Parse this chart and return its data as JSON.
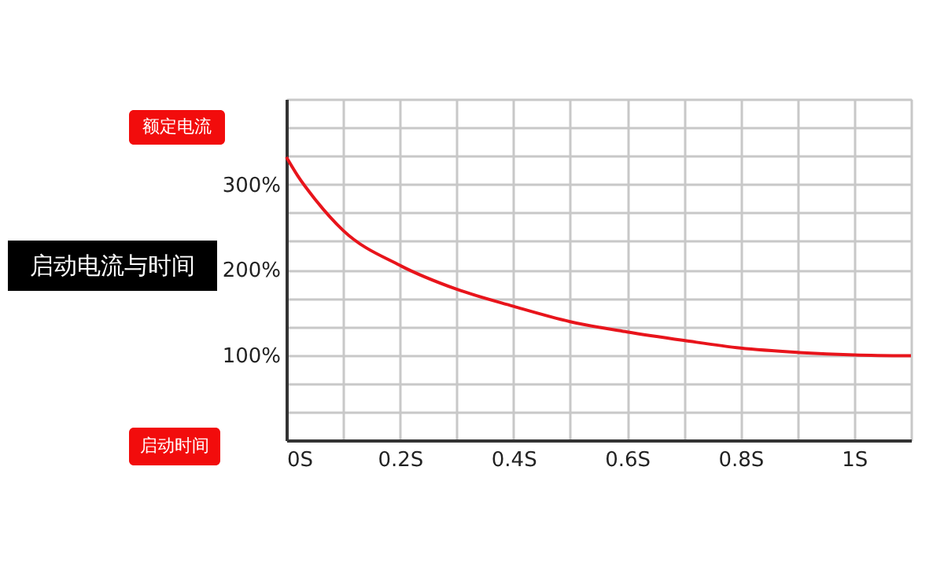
{
  "chart_data": {
    "type": "line",
    "title": "启动电流与时间",
    "xlabel": "启动时间",
    "ylabel": "额定电流",
    "x": [
      0,
      0.02,
      0.05,
      0.1,
      0.2,
      0.3,
      0.4,
      0.5,
      0.6,
      0.7,
      0.8,
      0.9,
      1.0,
      1.1
    ],
    "series": [
      {
        "color": "#e8141b",
        "values": [
          332,
          310,
          283,
          246,
          205,
          177,
          157,
          139,
          127,
          117,
          108,
          103,
          100,
          99
        ]
      }
    ],
    "xlim": [
      0,
      1.1
    ],
    "xticks": [
      {
        "value": 0,
        "label": "0S"
      },
      {
        "value": 0.1,
        "label": null
      },
      {
        "value": 0.2,
        "label": "0.2S"
      },
      {
        "value": 0.3,
        "label": null
      },
      {
        "value": 0.4,
        "label": "0.4S"
      },
      {
        "value": 0.5,
        "label": null
      },
      {
        "value": 0.6,
        "label": "0.6S"
      },
      {
        "value": 0.7,
        "label": null
      },
      {
        "value": 0.8,
        "label": "0.8S"
      },
      {
        "value": 0.9,
        "label": null
      },
      {
        "value": 1.0,
        "label": "1S"
      },
      {
        "value": 1.1,
        "label": null
      }
    ],
    "ylim": [
      0,
      400
    ],
    "yticks": [
      {
        "value": 0,
        "label": null
      },
      {
        "value": 33.3,
        "label": null
      },
      {
        "value": 66.7,
        "label": null
      },
      {
        "value": 100,
        "label": "100%"
      },
      {
        "value": 133.3,
        "label": null
      },
      {
        "value": 166.7,
        "label": null
      },
      {
        "value": 200,
        "label": "200%"
      },
      {
        "value": 233.3,
        "label": null
      },
      {
        "value": 266.7,
        "label": null
      },
      {
        "value": 300,
        "label": "300%"
      },
      {
        "value": 333.3,
        "label": null
      },
      {
        "value": 366.7,
        "label": null
      },
      {
        "value": 400,
        "label": null
      }
    ],
    "grid": true,
    "legend": false,
    "marker": "none",
    "line_style": "solid"
  }
}
